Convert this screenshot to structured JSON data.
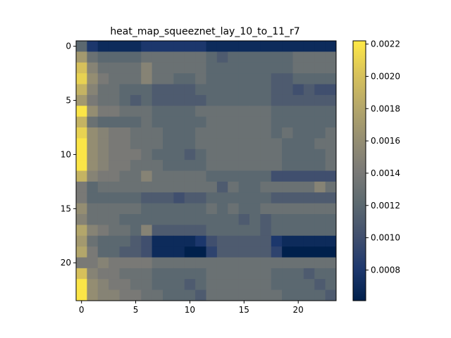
{
  "chart_data": {
    "type": "heatmap",
    "title": "heat_map_squeeznet_lay_10_to_11_r7",
    "colormap": "cividis",
    "rows": 24,
    "cols": 24,
    "xticks": [
      0,
      5,
      10,
      15,
      20
    ],
    "yticks": [
      0,
      5,
      10,
      15,
      20
    ],
    "xlim": [
      -0.5,
      23.5
    ],
    "ylim": [
      23.5,
      -0.5
    ],
    "colorbar": {
      "min": 0.00061,
      "max": 0.00222,
      "ticks": [
        0.0008,
        0.001,
        0.0012,
        0.0014,
        0.0016,
        0.0018,
        0.002,
        0.0022
      ],
      "tick_labels": [
        "0.0008",
        "0.0010",
        "0.0012",
        "0.0014",
        "0.0016",
        "0.0018",
        "0.0020",
        "0.0022"
      ]
    },
    "values": [
      [
        0.0012,
        0.0008,
        0.0007,
        0.0007,
        0.0007,
        0.0007,
        0.0008,
        0.0008,
        0.0008,
        0.0008,
        0.0008,
        0.0008,
        0.0007,
        0.0007,
        0.0007,
        0.0007,
        0.0007,
        0.0007,
        0.0007,
        0.0007,
        0.0007,
        0.0007,
        0.0007,
        0.0007
      ],
      [
        0.0017,
        0.0013,
        0.0012,
        0.0012,
        0.0012,
        0.0012,
        0.0013,
        0.0013,
        0.0013,
        0.0013,
        0.0013,
        0.0013,
        0.0012,
        0.0011,
        0.0012,
        0.0012,
        0.0012,
        0.0012,
        0.0012,
        0.0012,
        0.0013,
        0.0013,
        0.0013,
        0.0013
      ],
      [
        0.002,
        0.0015,
        0.0013,
        0.0013,
        0.0013,
        0.0013,
        0.0015,
        0.0013,
        0.0013,
        0.0013,
        0.0013,
        0.0013,
        0.0012,
        0.0012,
        0.0012,
        0.0012,
        0.0012,
        0.0012,
        0.0012,
        0.0012,
        0.0013,
        0.0013,
        0.0013,
        0.0013
      ],
      [
        0.0021,
        0.0016,
        0.0014,
        0.0013,
        0.0013,
        0.0013,
        0.0015,
        0.0013,
        0.0013,
        0.0012,
        0.0012,
        0.0013,
        0.0012,
        0.0012,
        0.0012,
        0.0012,
        0.0012,
        0.0012,
        0.0011,
        0.0011,
        0.0012,
        0.0012,
        0.0012,
        0.0012
      ],
      [
        0.0019,
        0.0015,
        0.0013,
        0.0013,
        0.0012,
        0.0012,
        0.0012,
        0.0011,
        0.0011,
        0.0011,
        0.0011,
        0.0012,
        0.0012,
        0.0012,
        0.0012,
        0.0012,
        0.0012,
        0.0012,
        0.0011,
        0.0011,
        0.001,
        0.0011,
        0.001,
        0.001
      ],
      [
        0.0017,
        0.0014,
        0.0013,
        0.0013,
        0.0012,
        0.0011,
        0.0012,
        0.0011,
        0.0011,
        0.0011,
        0.0011,
        0.0011,
        0.0012,
        0.0012,
        0.0012,
        0.0012,
        0.0012,
        0.0012,
        0.0011,
        0.0011,
        0.0011,
        0.0011,
        0.0011,
        0.0011
      ],
      [
        0.0022,
        0.0016,
        0.0014,
        0.0014,
        0.0013,
        0.0013,
        0.0013,
        0.0012,
        0.0012,
        0.0012,
        0.0012,
        0.0013,
        0.0013,
        0.0013,
        0.0013,
        0.0013,
        0.0013,
        0.0013,
        0.0012,
        0.0012,
        0.0012,
        0.0012,
        0.0012,
        0.0012
      ],
      [
        0.0019,
        0.0013,
        0.0012,
        0.0012,
        0.0012,
        0.0012,
        0.0013,
        0.0012,
        0.0012,
        0.0012,
        0.0012,
        0.0012,
        0.0013,
        0.0013,
        0.0013,
        0.0013,
        0.0013,
        0.0013,
        0.0012,
        0.0012,
        0.0012,
        0.0012,
        0.0012,
        0.0012
      ],
      [
        0.0021,
        0.0016,
        0.0015,
        0.0014,
        0.0014,
        0.0013,
        0.0013,
        0.0013,
        0.0012,
        0.0012,
        0.0012,
        0.0013,
        0.0013,
        0.0013,
        0.0013,
        0.0013,
        0.0013,
        0.0013,
        0.0012,
        0.0013,
        0.0012,
        0.0012,
        0.0012,
        0.0013
      ],
      [
        0.0022,
        0.0016,
        0.0015,
        0.0014,
        0.0014,
        0.0013,
        0.0013,
        0.0013,
        0.0012,
        0.0012,
        0.0012,
        0.0013,
        0.0013,
        0.0013,
        0.0013,
        0.0013,
        0.0013,
        0.0013,
        0.0013,
        0.0012,
        0.0012,
        0.0012,
        0.0013,
        0.0013
      ],
      [
        0.0022,
        0.0016,
        0.0015,
        0.0014,
        0.0014,
        0.0014,
        0.0013,
        0.0012,
        0.0012,
        0.0012,
        0.0011,
        0.0012,
        0.0013,
        0.0013,
        0.0013,
        0.0013,
        0.0013,
        0.0013,
        0.0013,
        0.0012,
        0.0012,
        0.0012,
        0.0012,
        0.0013
      ],
      [
        0.0022,
        0.0016,
        0.0015,
        0.0014,
        0.0014,
        0.0013,
        0.0013,
        0.0013,
        0.0012,
        0.0012,
        0.0012,
        0.0012,
        0.0013,
        0.0013,
        0.0013,
        0.0013,
        0.0013,
        0.0013,
        0.0013,
        0.0012,
        0.0012,
        0.0012,
        0.0012,
        0.0013
      ],
      [
        0.0019,
        0.0015,
        0.0014,
        0.0014,
        0.0013,
        0.0013,
        0.0015,
        0.0013,
        0.0013,
        0.0013,
        0.0013,
        0.0013,
        0.0012,
        0.0012,
        0.0012,
        0.0012,
        0.0012,
        0.0012,
        0.001,
        0.001,
        0.001,
        0.001,
        0.001,
        0.001
      ],
      [
        0.0014,
        0.0012,
        0.0013,
        0.0013,
        0.0013,
        0.0013,
        0.0013,
        0.0013,
        0.0013,
        0.0013,
        0.0013,
        0.0013,
        0.0013,
        0.0011,
        0.0013,
        0.0012,
        0.0012,
        0.0013,
        0.0013,
        0.0013,
        0.0013,
        0.0013,
        0.0015,
        0.0013
      ],
      [
        0.0014,
        0.0012,
        0.0012,
        0.0012,
        0.0012,
        0.0012,
        0.0011,
        0.0011,
        0.0011,
        0.001,
        0.0011,
        0.0011,
        0.0012,
        0.0012,
        0.0012,
        0.0012,
        0.0012,
        0.0012,
        0.0011,
        0.0011,
        0.0011,
        0.0011,
        0.0011,
        0.0011
      ],
      [
        0.0016,
        0.0013,
        0.0013,
        0.0013,
        0.0013,
        0.0013,
        0.0012,
        0.0012,
        0.0012,
        0.0012,
        0.0012,
        0.0012,
        0.0013,
        0.0012,
        0.0013,
        0.0012,
        0.0012,
        0.0013,
        0.0013,
        0.0013,
        0.0013,
        0.0013,
        0.0013,
        0.0013
      ],
      [
        0.0015,
        0.0013,
        0.0013,
        0.0013,
        0.0012,
        0.0012,
        0.0012,
        0.0012,
        0.0012,
        0.0012,
        0.0012,
        0.0012,
        0.0012,
        0.0012,
        0.0012,
        0.0011,
        0.0012,
        0.0011,
        0.0012,
        0.0012,
        0.0012,
        0.0012,
        0.0012,
        0.0012
      ],
      [
        0.0018,
        0.0015,
        0.0014,
        0.0013,
        0.0013,
        0.0012,
        0.0015,
        0.0011,
        0.0011,
        0.0011,
        0.0011,
        0.0011,
        0.0012,
        0.0012,
        0.0012,
        0.0012,
        0.0012,
        0.0011,
        0.0012,
        0.0012,
        0.0012,
        0.0012,
        0.0012,
        0.0012
      ],
      [
        0.0017,
        0.0013,
        0.0012,
        0.0012,
        0.0012,
        0.0011,
        0.001,
        0.0007,
        0.0007,
        0.0007,
        0.0007,
        0.0008,
        0.001,
        0.0011,
        0.0011,
        0.0011,
        0.0011,
        0.0011,
        0.0008,
        0.0007,
        0.0007,
        0.0007,
        0.0007,
        0.0007
      ],
      [
        0.0018,
        0.0014,
        0.0012,
        0.0012,
        0.0011,
        0.0011,
        0.001,
        0.0007,
        0.0007,
        0.0007,
        0.0006,
        0.0006,
        0.0009,
        0.0011,
        0.0011,
        0.0011,
        0.0011,
        0.0011,
        0.0009,
        0.0006,
        0.0006,
        0.0006,
        0.0006,
        0.0006
      ],
      [
        0.0014,
        0.0014,
        0.0015,
        0.0014,
        0.0014,
        0.0014,
        0.0014,
        0.0013,
        0.0013,
        0.0013,
        0.0013,
        0.0013,
        0.0013,
        0.0013,
        0.0013,
        0.0013,
        0.0013,
        0.0013,
        0.0013,
        0.0013,
        0.0013,
        0.0013,
        0.0013,
        0.0013
      ],
      [
        0.002,
        0.0015,
        0.0014,
        0.0014,
        0.0013,
        0.0013,
        0.0013,
        0.0012,
        0.0012,
        0.0012,
        0.0012,
        0.0012,
        0.0013,
        0.0013,
        0.0013,
        0.0013,
        0.0013,
        0.0013,
        0.0012,
        0.0012,
        0.0012,
        0.0011,
        0.0012,
        0.0012
      ],
      [
        0.0022,
        0.0016,
        0.0015,
        0.0014,
        0.0014,
        0.0013,
        0.0013,
        0.0012,
        0.0012,
        0.0012,
        0.0011,
        0.0012,
        0.0013,
        0.0013,
        0.0013,
        0.0013,
        0.0013,
        0.0013,
        0.0012,
        0.0012,
        0.0012,
        0.0012,
        0.0011,
        0.0012
      ],
      [
        0.0022,
        0.0016,
        0.0015,
        0.0015,
        0.0014,
        0.0014,
        0.0013,
        0.0013,
        0.0012,
        0.0012,
        0.0012,
        0.0011,
        0.0013,
        0.0013,
        0.0013,
        0.0013,
        0.0013,
        0.0013,
        0.0013,
        0.0012,
        0.0012,
        0.0012,
        0.0012,
        0.0011
      ]
    ]
  }
}
